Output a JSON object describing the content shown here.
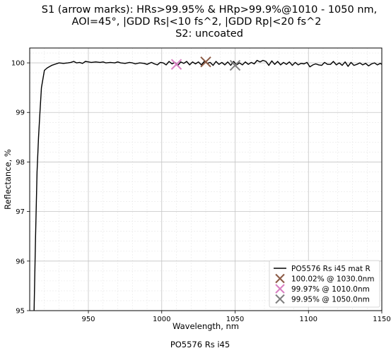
{
  "chart_data": {
    "type": "line",
    "title_lines": [
      "S1 (arrow marks): HRs>99.95% & HRp>99.9%@1010 - 1050 nm,",
      "AOI=45°, |GDD Rs|<10 fs^2, |GDD Rp|<20 fs^2",
      "S2: uncoated"
    ],
    "xlabel": "Wavelength, nm",
    "ylabel": "Reflectance, %",
    "footer": "PO5576 Rs i45",
    "xlim": [
      910,
      1150
    ],
    "ylim": [
      95,
      100.3
    ],
    "x_ticks": [
      950,
      1000,
      1050,
      1100,
      1150
    ],
    "x_tick_labels": [
      "950",
      "1000",
      "1050",
      "1100",
      "1150"
    ],
    "y_ticks": [
      95,
      96,
      97,
      98,
      99,
      100
    ],
    "y_tick_labels": [
      "95",
      "96",
      "97",
      "98",
      "99",
      "100"
    ],
    "grid": true,
    "legend_position": "lower-right",
    "series": [
      {
        "name": "PO5576 Rs i45 mat R",
        "color": "#000000",
        "x": [
          913,
          914,
          915,
          916,
          917,
          918,
          920,
          922,
          925,
          928,
          930,
          933,
          936,
          938,
          940,
          942,
          944,
          946,
          948,
          950,
          952,
          955,
          958,
          960,
          962,
          965,
          968,
          970,
          972,
          975,
          978,
          980,
          982,
          985,
          988,
          990,
          993,
          995,
          997,
          999,
          1001,
          1003,
          1005,
          1007,
          1009,
          1011,
          1013,
          1015,
          1017,
          1019,
          1021,
          1023,
          1025,
          1027,
          1029,
          1031,
          1033,
          1035,
          1037,
          1039,
          1041,
          1043,
          1045,
          1047,
          1049,
          1051,
          1053,
          1055,
          1057,
          1059,
          1061,
          1063,
          1065,
          1067,
          1069,
          1071,
          1073,
          1075,
          1077,
          1079,
          1081,
          1083,
          1085,
          1087,
          1089,
          1091,
          1093,
          1095,
          1097,
          1099,
          1101,
          1103,
          1105,
          1107,
          1109,
          1111,
          1113,
          1115,
          1117,
          1119,
          1121,
          1123,
          1125,
          1127,
          1129,
          1131,
          1133,
          1135,
          1137,
          1139,
          1141,
          1143,
          1145,
          1147,
          1149,
          1150
        ],
        "y": [
          95.0,
          96.5,
          97.8,
          98.5,
          99.0,
          99.5,
          99.85,
          99.9,
          99.95,
          99.98,
          100.0,
          99.99,
          100.0,
          100.01,
          100.03,
          100.0,
          100.01,
          99.99,
          100.03,
          100.02,
          100.01,
          100.02,
          100.01,
          100.02,
          100.0,
          100.01,
          100.0,
          100.02,
          100.0,
          99.99,
          100.01,
          100.0,
          99.98,
          100.0,
          99.99,
          99.97,
          100.01,
          99.98,
          99.96,
          100.01,
          100.0,
          99.96,
          100.03,
          99.98,
          100.01,
          99.95,
          100.02,
          99.99,
          100.03,
          99.96,
          100.02,
          99.98,
          100.02,
          99.96,
          100.03,
          99.99,
          100.01,
          99.95,
          100.03,
          99.97,
          100.01,
          99.96,
          100.02,
          99.95,
          100.03,
          99.96,
          100.0,
          99.96,
          100.02,
          99.97,
          100.01,
          99.98,
          100.05,
          100.02,
          100.05,
          100.03,
          99.95,
          100.04,
          99.97,
          100.03,
          99.96,
          100.01,
          99.97,
          100.02,
          99.95,
          100.01,
          99.96,
          99.99,
          99.98,
          100.01,
          99.92,
          99.96,
          99.98,
          99.96,
          99.95,
          100.01,
          99.97,
          99.97,
          100.03,
          99.96,
          100.0,
          99.95,
          100.02,
          99.93,
          100.01,
          99.95,
          99.97,
          100.0,
          99.96,
          99.99,
          99.94,
          99.98,
          100.0,
          99.96,
          99.99,
          99.97
        ]
      }
    ],
    "markers": [
      {
        "name": "100.02% @ 1030.0nm",
        "x": 1030.0,
        "y": 100.02,
        "color": "#8b5a44"
      },
      {
        "name": "99.97% @ 1010.0nm",
        "x": 1010.0,
        "y": 99.97,
        "color": "#d87fc2"
      },
      {
        "name": "99.95% @ 1050.0nm",
        "x": 1050.0,
        "y": 99.95,
        "color": "#7f7f7f"
      }
    ]
  }
}
